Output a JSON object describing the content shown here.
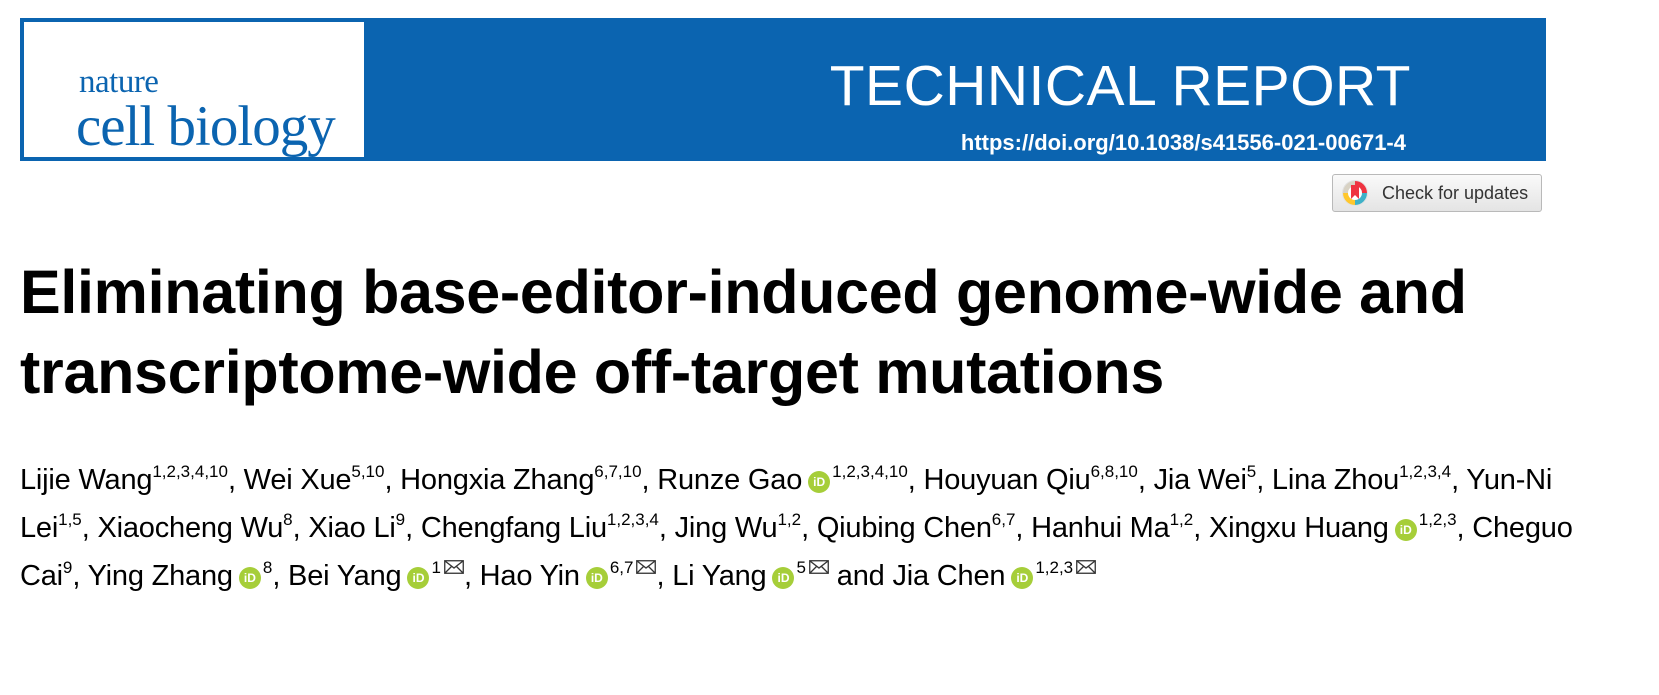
{
  "journal": {
    "name_line1": "nature",
    "name_line2": "cell biology"
  },
  "header": {
    "article_type": "TECHNICAL REPORT",
    "doi": "https://doi.org/10.1038/s41556-021-00671-4"
  },
  "check_updates": {
    "label": "Check for updates"
  },
  "article": {
    "title": "Eliminating base-editor-induced genome-wide and transcriptome-wide off-target mutations"
  },
  "authors": [
    {
      "name": "Lijie Wang",
      "aff": "1,2,3,4,10"
    },
    {
      "name": "Wei Xue",
      "aff": "5,10"
    },
    {
      "name": "Hongxia Zhang",
      "aff": "6,7,10"
    },
    {
      "name": "Runze Gao",
      "aff": "1,2,3,4,10",
      "orcid": true
    },
    {
      "name": "Houyuan Qiu",
      "aff": "6,8,10"
    },
    {
      "name": "Jia Wei",
      "aff": "5"
    },
    {
      "name": "Lina Zhou",
      "aff": "1,2,3,4"
    },
    {
      "name": "Yun-Ni Lei",
      "aff": "1,5"
    },
    {
      "name": "Xiaocheng Wu",
      "aff": "8"
    },
    {
      "name": "Xiao Li",
      "aff": "9"
    },
    {
      "name": "Chengfang Liu",
      "aff": "1,2,3,4"
    },
    {
      "name": "Jing Wu",
      "aff": "1,2"
    },
    {
      "name": "Qiubing Chen",
      "aff": "6,7"
    },
    {
      "name": "Hanhui Ma",
      "aff": "1,2"
    },
    {
      "name": "Xingxu Huang",
      "aff": "1,2,3",
      "orcid": true
    },
    {
      "name": "Cheguo Cai",
      "aff": "9"
    },
    {
      "name": "Ying Zhang",
      "aff": "8",
      "orcid": true
    },
    {
      "name": "Bei Yang",
      "aff": "1",
      "orcid": true,
      "corresponding": true
    },
    {
      "name": "Hao Yin",
      "aff": "6,7",
      "orcid": true,
      "corresponding": true
    },
    {
      "name": "Li Yang",
      "aff": "5",
      "orcid": true,
      "corresponding": true
    },
    {
      "name": "Jia Chen",
      "aff": "1,2,3",
      "orcid": true,
      "corresponding": true
    }
  ],
  "author_separator": ", ",
  "author_final_separator": " and ",
  "orcid_icon_label": "iD",
  "colors": {
    "brand_blue": "#0b64b0",
    "orcid_green": "#a6ce39"
  }
}
